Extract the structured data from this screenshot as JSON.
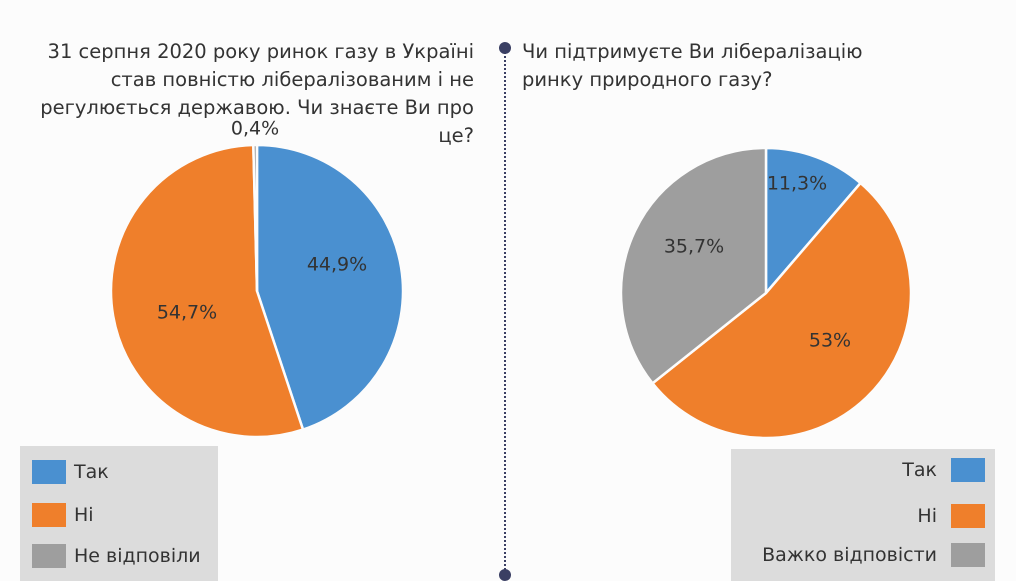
{
  "colors": {
    "yes": "#4a90d0",
    "no": "#ef7f2b",
    "other": "#9e9e9e"
  },
  "chart_data": [
    {
      "type": "pie",
      "title": "31 серпня 2020 року ринок газу в Україні став повністю лібералізованим і не регулюється державою. Чи знаєте Ви про це?",
      "categories": [
        "Так",
        "Ні",
        "Не відповіли"
      ],
      "values": [
        44.9,
        54.7,
        0.4
      ],
      "labels": [
        "44,9%",
        "54,7%",
        "0,4%"
      ],
      "colors": [
        "#4a90d0",
        "#ef7f2b",
        "#9e9e9e"
      ],
      "legend_position": "bottom-left"
    },
    {
      "type": "pie",
      "title": "Чи підтримуєте Ви лібералізацію ринку природного газу?",
      "categories": [
        "Так",
        "Ні",
        "Важко відповісти"
      ],
      "values": [
        11.3,
        53,
        35.7
      ],
      "labels": [
        "11,3%",
        "53%",
        "35,7%"
      ],
      "colors": [
        "#4a90d0",
        "#ef7f2b",
        "#9e9e9e"
      ],
      "legend_position": "bottom-right"
    }
  ]
}
